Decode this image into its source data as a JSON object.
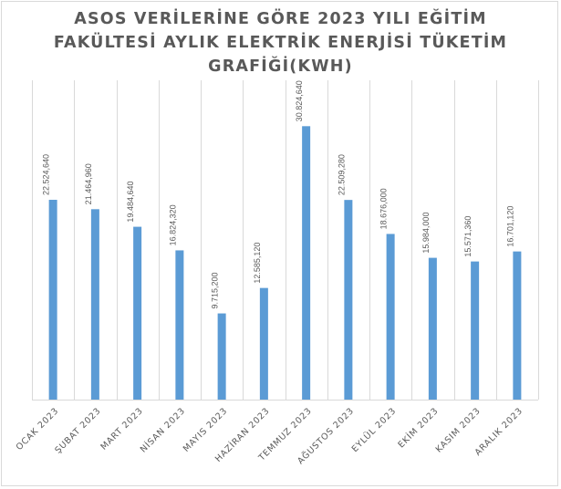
{
  "chart_data": {
    "type": "bar",
    "title_lines": [
      "ASOS VERİLERİNE GÖRE 2023 YILI EĞİTİM",
      "FAKÜLTESİ AYLIK ELEKTRİK ENERJİSİ TÜKETİM",
      "GRAFİĞİ(KWH)"
    ],
    "categories": [
      "OCAK 2023",
      "ŞUBAT 2023",
      "MART 2023",
      "NİSAN 2023",
      "MAYIS 2023",
      "HAZİRAN 2023",
      "TEMMUZ 2023",
      "AĞUSTOS 2023",
      "EYLÜL 2023",
      "EKİM 2023",
      "KASIM 2023",
      "ARALIK 2023"
    ],
    "values": [
      22524.64,
      21464.96,
      19484.64,
      16824.32,
      9715.2,
      12585.12,
      30824.64,
      22509.28,
      18676.0,
      15984.0,
      15571.36,
      16701.12
    ],
    "value_labels": [
      "22.524,640",
      "21.464,960",
      "19.484,640",
      "16.824,320",
      "9.715,200",
      "12.585,120",
      "30.824,640",
      "22.509,280",
      "18.676,000",
      "15.984,000",
      "15.571,360",
      "16.701,120"
    ],
    "xlabel": "",
    "ylabel": "",
    "ylim": [
      0,
      36000
    ],
    "grid": true,
    "legend": "none",
    "colors": {
      "bar": "#5b9bd5",
      "grid": "#d9d9d9",
      "label": "#595959",
      "axis": "#d9d9d9"
    }
  }
}
